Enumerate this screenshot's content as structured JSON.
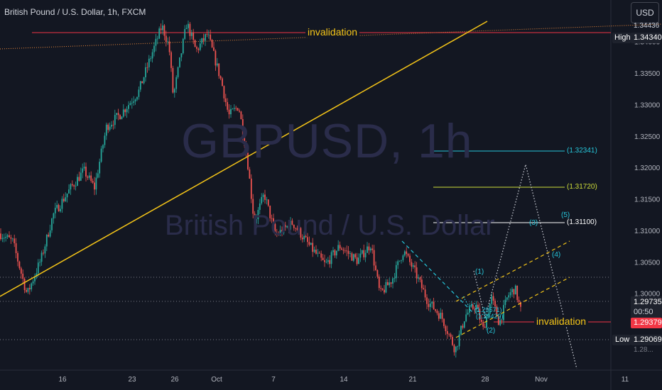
{
  "header": {
    "title": "British Pound / U.S. Dollar, 1h, FXCM",
    "currency_button": "USD"
  },
  "watermark": {
    "symbol": "GBPUSD, 1h",
    "name": "British Pound / U.S. Dollar"
  },
  "annotations": {
    "invalidation_top": "invalidation",
    "invalidation_bottom": "invalidation",
    "levels": [
      "(1.32341)",
      "(1.31720)",
      "(1.31100)"
    ],
    "waves": {
      "w1": "(1)",
      "w2": "(2)",
      "w3": "(3)",
      "w4": "(4)",
      "w5": "(5)",
      "sub1": "(1.29571)",
      "sub2": "(1.29429)"
    }
  },
  "price_labels": {
    "high_label": "High",
    "high_value": "1.34340",
    "top_partial": "1.34436",
    "current_value": "1.29735",
    "countdown": "00:50",
    "invalid_value": "1.29379",
    "low_label": "Low",
    "low_value": "1.29069",
    "low_partial": "1.28..."
  },
  "colors": {
    "background": "#131722",
    "bull": "#26a69a",
    "bear": "#ef5350",
    "trendline": "#f5c518",
    "invalid_line": "#f23645",
    "cyan": "#26c6da"
  },
  "chart_data": {
    "type": "candlestick",
    "symbol": "GBPUSD",
    "timeframe": "1h",
    "source": "FXCM",
    "y_ticks": [
      "1.34000",
      "1.33500",
      "1.33000",
      "1.32500",
      "1.32000",
      "1.31500",
      "1.31000",
      "1.30500",
      "1.30000"
    ],
    "x_ticks": [
      "16",
      "23",
      "26",
      "Oct",
      "7",
      "14",
      "21",
      "28",
      "Nov",
      "11"
    ],
    "ylim": [
      1.2878,
      1.3466
    ],
    "high": 1.3434,
    "low": 1.29069,
    "last": 1.29735,
    "price_path": [
      [
        0,
        1.3095
      ],
      [
        18,
        1.3082
      ],
      [
        38,
        1.2998
      ],
      [
        58,
        1.3055
      ],
      [
        75,
        1.3125
      ],
      [
        100,
        1.3168
      ],
      [
        118,
        1.3195
      ],
      [
        133,
        1.3168
      ],
      [
        150,
        1.3265
      ],
      [
        170,
        1.3285
      ],
      [
        195,
        1.332
      ],
      [
        212,
        1.3375
      ],
      [
        228,
        1.3425
      ],
      [
        238,
        1.3392
      ],
      [
        244,
        1.3312
      ],
      [
        252,
        1.3362
      ],
      [
        263,
        1.343
      ],
      [
        276,
        1.3385
      ],
      [
        292,
        1.3412
      ],
      [
        300,
        1.3382
      ],
      [
        312,
        1.3335
      ],
      [
        322,
        1.3282
      ],
      [
        336,
        1.3298
      ],
      [
        348,
        1.3215
      ],
      [
        358,
        1.3112
      ],
      [
        372,
        1.3158
      ],
      [
        388,
        1.3092
      ],
      [
        412,
        1.3112
      ],
      [
        438,
        1.3072
      ],
      [
        458,
        1.3045
      ],
      [
        478,
        1.3075
      ],
      [
        503,
        1.3052
      ],
      [
        522,
        1.3078
      ],
      [
        535,
        1.2998
      ],
      [
        552,
        1.3022
      ],
      [
        568,
        1.3068
      ],
      [
        585,
        1.3032
      ],
      [
        602,
        1.2988
      ],
      [
        622,
        1.2962
      ],
      [
        641,
        1.291
      ],
      [
        655,
        1.2965
      ],
      [
        670,
        1.2982
      ],
      [
        680,
        1.2942
      ],
      [
        692,
        1.2992
      ],
      [
        703,
        1.2952
      ],
      [
        715,
        1.2996
      ],
      [
        725,
        1.3008
      ],
      [
        733,
        1.2973
      ]
    ]
  }
}
